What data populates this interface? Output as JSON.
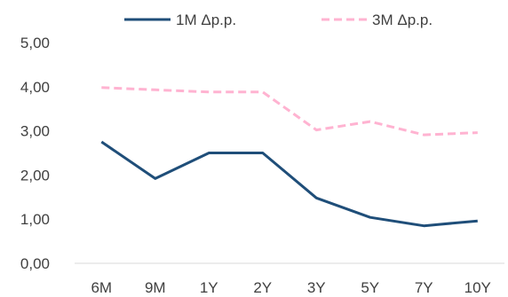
{
  "chart_data": {
    "type": "line",
    "categories": [
      "6M",
      "9M",
      "1Y",
      "2Y",
      "3Y",
      "5Y",
      "7Y",
      "10Y"
    ],
    "series": [
      {
        "name": "1M Δp.p.",
        "values": [
          2.75,
          1.92,
          2.5,
          2.5,
          1.48,
          1.04,
          0.85,
          0.96
        ],
        "color": "#1f4e79",
        "style": "solid"
      },
      {
        "name": "3M Δp.p.",
        "values": [
          3.98,
          3.93,
          3.88,
          3.88,
          3.02,
          3.21,
          2.91,
          2.96
        ],
        "color": "#ffb3d1",
        "style": "dashed"
      }
    ],
    "yticks": [
      "0,00",
      "1,00",
      "2,00",
      "3,00",
      "4,00",
      "5,00"
    ],
    "ylim": [
      0,
      5
    ],
    "grid": false,
    "legend_position": "top"
  }
}
